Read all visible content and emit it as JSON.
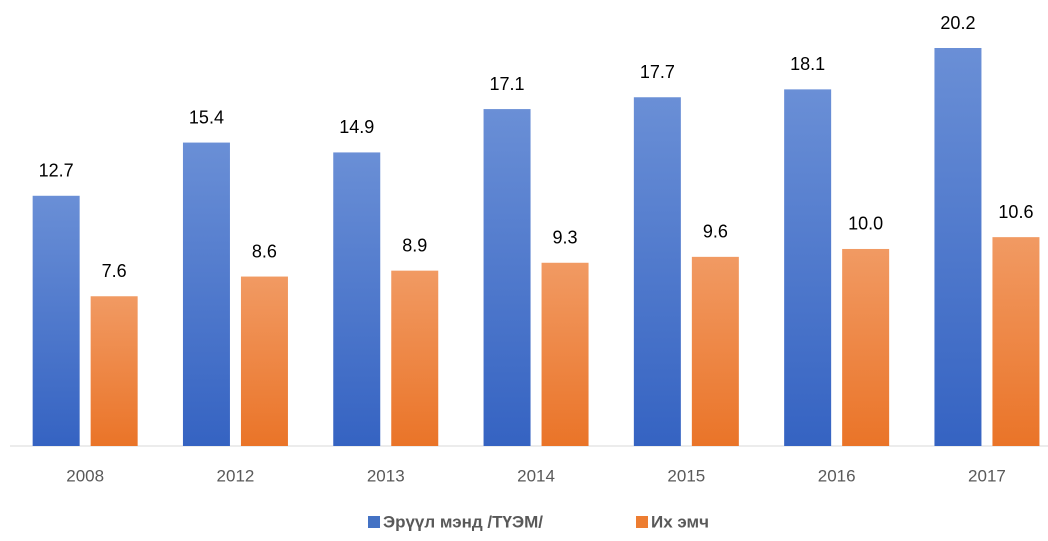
{
  "chart_data": {
    "type": "bar",
    "categories": [
      "2008",
      "2012",
      "2013",
      "2014",
      "2015",
      "2016",
      "2017"
    ],
    "series": [
      {
        "name": "Эрүүл мэнд /ТҮЭМ/",
        "color": "#4472c4",
        "values": [
          12.7,
          15.4,
          14.9,
          17.1,
          17.7,
          18.1,
          20.2
        ],
        "value_labels": [
          "12.7",
          "15.4",
          "14.9",
          "17.1",
          "17.7",
          "18.1",
          "20.2"
        ]
      },
      {
        "name": "Их эмч",
        "color": "#ed7d31",
        "values": [
          7.6,
          8.6,
          8.9,
          9.3,
          9.6,
          10.0,
          10.6
        ],
        "value_labels": [
          "7.6",
          "8.6",
          "8.9",
          "9.3",
          "9.6",
          "10.0",
          "10.6"
        ]
      }
    ],
    "legend": "bottom"
  }
}
